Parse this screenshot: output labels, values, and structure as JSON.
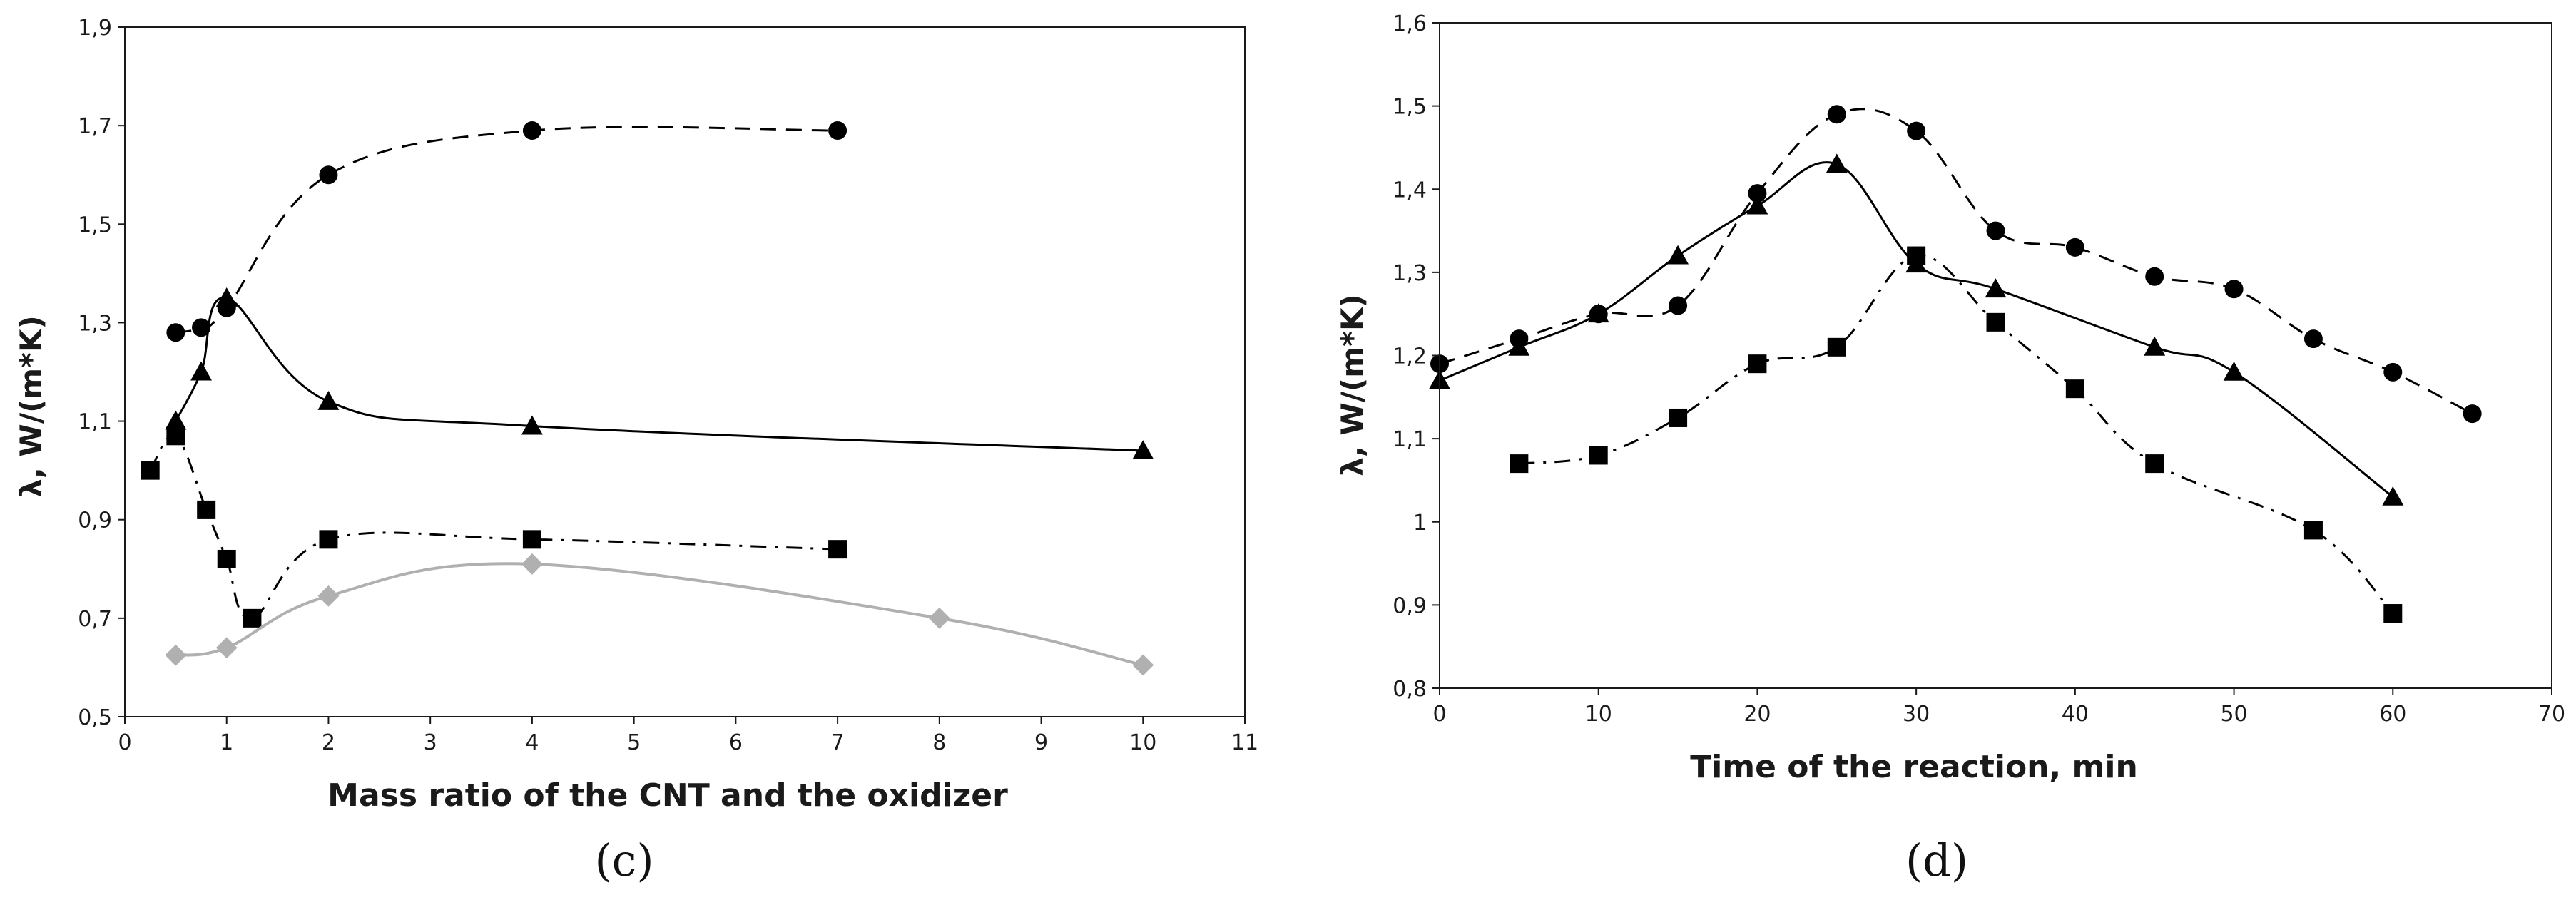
{
  "chart_data": [
    {
      "type": "scatter",
      "panel_label": "(c)",
      "xlabel": "Mass ratio of the CNT and the oxidizer",
      "ylabel": "λ, W/(m*K)",
      "xlim": [
        0,
        11
      ],
      "ylim": [
        0.5,
        1.9
      ],
      "xticks": [
        0,
        1,
        2,
        3,
        4,
        5,
        6,
        7,
        8,
        9,
        10,
        11
      ],
      "xtick_labels": [
        "0",
        "1",
        "2",
        "3",
        "4",
        "5",
        "6",
        "7",
        "8",
        "9",
        "10",
        "11"
      ],
      "yticks": [
        0.5,
        0.7,
        0.9,
        1.1,
        1.3,
        1.5,
        1.7,
        1.9
      ],
      "ytick_labels": [
        "0,5",
        "0,7",
        "0,9",
        "1,1",
        "1,3",
        "1,5",
        "1,7",
        "1,9"
      ],
      "grid": false,
      "legend": "none",
      "series": [
        {
          "marker": "circle",
          "line": "dashed",
          "color": "#000000",
          "x": [
            0.5,
            0.75,
            1.0,
            2.0,
            4.0,
            7.0
          ],
          "y": [
            1.28,
            1.29,
            1.33,
            1.6,
            1.69,
            1.69
          ]
        },
        {
          "marker": "triangle",
          "line": "solid",
          "color": "#000000",
          "x": [
            0.5,
            0.75,
            1.0,
            2.0,
            4.0,
            10.0
          ],
          "y": [
            1.1,
            1.2,
            1.35,
            1.14,
            1.09,
            1.04
          ]
        },
        {
          "marker": "square",
          "line": "dashdot",
          "color": "#000000",
          "x": [
            0.25,
            0.5,
            0.8,
            1.0,
            1.25,
            2.0,
            4.0,
            7.0
          ],
          "y": [
            1.0,
            1.07,
            0.92,
            0.82,
            0.7,
            0.86,
            0.86,
            0.84
          ]
        },
        {
          "marker": "diamond",
          "line": "solid",
          "color": "#b0b0b0",
          "x": [
            0.5,
            1.0,
            2.0,
            4.0,
            8.0,
            10.0
          ],
          "y": [
            0.625,
            0.64,
            0.745,
            0.81,
            0.7,
            0.605
          ]
        }
      ]
    },
    {
      "type": "scatter",
      "panel_label": "(d)",
      "xlabel": "Time of the reaction, min",
      "ylabel": "λ, W/(m*K)",
      "xlim": [
        0,
        70
      ],
      "ylim": [
        0.8,
        1.6
      ],
      "xticks": [
        0,
        10,
        20,
        30,
        40,
        50,
        60,
        70
      ],
      "xtick_labels": [
        "0",
        "10",
        "20",
        "30",
        "40",
        "50",
        "60",
        "70"
      ],
      "yticks": [
        0.8,
        0.9,
        1.0,
        1.1,
        1.2,
        1.3,
        1.4,
        1.5,
        1.6
      ],
      "ytick_labels": [
        "0,8",
        "0,9",
        "1",
        "1,1",
        "1,2",
        "1,3",
        "1,4",
        "1,5",
        "1,6"
      ],
      "grid": false,
      "legend": "none",
      "series": [
        {
          "marker": "circle",
          "line": "dashed",
          "color": "#000000",
          "x": [
            0,
            5,
            10,
            15,
            20,
            25,
            30,
            35,
            40,
            45,
            50,
            55,
            60,
            65
          ],
          "y": [
            1.19,
            1.22,
            1.25,
            1.26,
            1.395,
            1.49,
            1.47,
            1.35,
            1.33,
            1.295,
            1.28,
            1.22,
            1.18,
            1.13
          ]
        },
        {
          "marker": "triangle",
          "line": "solid",
          "color": "#000000",
          "x": [
            0,
            5,
            10,
            15,
            20,
            25,
            30,
            35,
            45,
            50,
            60
          ],
          "y": [
            1.17,
            1.21,
            1.25,
            1.32,
            1.38,
            1.43,
            1.31,
            1.28,
            1.21,
            1.18,
            1.03
          ]
        },
        {
          "marker": "square",
          "line": "dashdot",
          "color": "#000000",
          "x": [
            5,
            10,
            15,
            20,
            25,
            30,
            35,
            40,
            45,
            55,
            60
          ],
          "y": [
            1.07,
            1.08,
            1.125,
            1.19,
            1.21,
            1.32,
            1.24,
            1.16,
            1.07,
            0.99,
            0.89
          ]
        }
      ]
    }
  ]
}
